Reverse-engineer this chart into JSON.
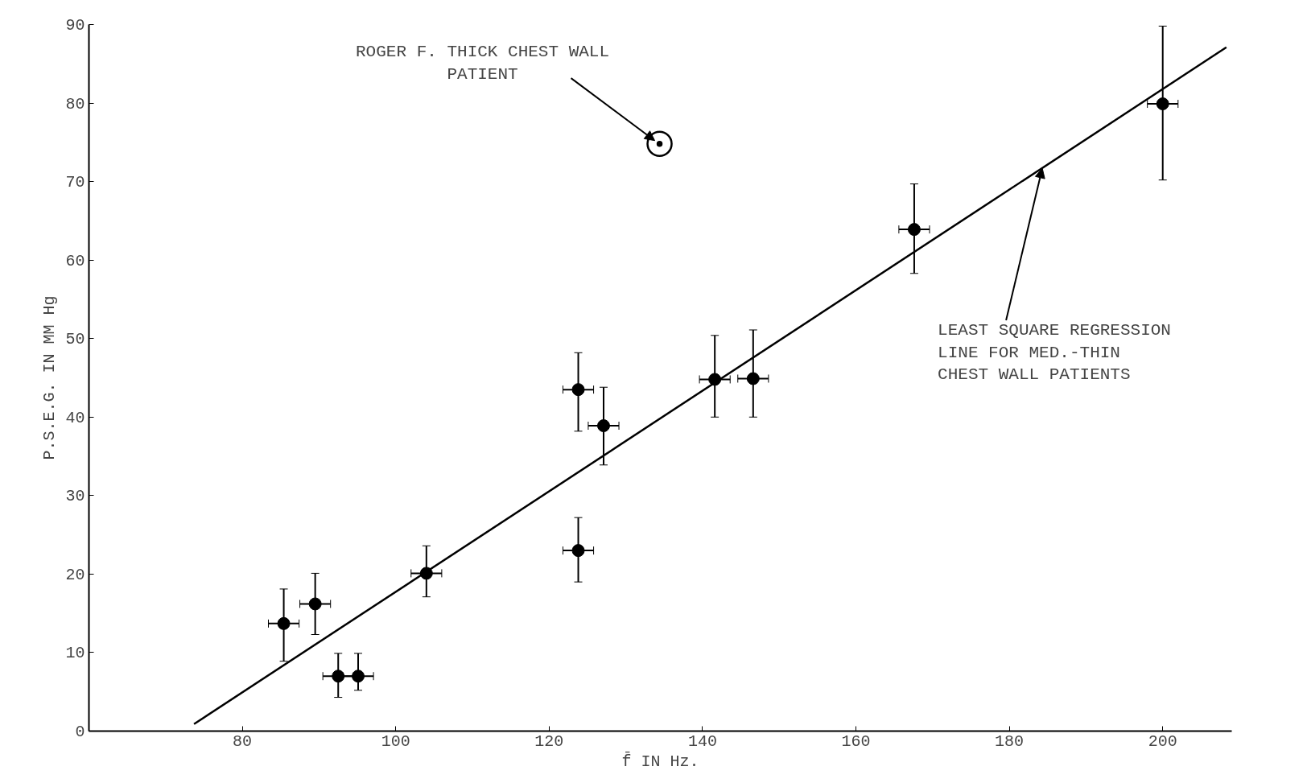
{
  "chart_data": {
    "type": "scatter",
    "xlabel": "f̄ IN Hz.",
    "ylabel": "P.S.E.G. IN MM Hg",
    "xlim": [
      60,
      209
    ],
    "ylim": [
      0,
      90
    ],
    "xticks": [
      80,
      100,
      120,
      140,
      160,
      180,
      200
    ],
    "yticks": [
      0,
      10,
      20,
      30,
      40,
      50,
      60,
      70,
      80,
      90
    ],
    "grid": false,
    "series": [
      {
        "color": "#000000",
        "marker": "circle",
        "x": [
          85.4,
          89.5,
          92.5,
          95.1,
          104.0,
          123.8,
          123.8,
          127.1,
          141.6,
          146.6,
          167.6,
          200.0
        ],
        "values": [
          13.7,
          16.2,
          7.0,
          7.0,
          20.1,
          43.5,
          23.0,
          38.9,
          44.8,
          44.9,
          63.9,
          79.9
        ],
        "errors": [
          [
            8.9,
            18.1
          ],
          [
            12.3,
            20.1
          ],
          [
            4.3,
            9.9
          ],
          [
            5.2,
            9.9
          ],
          [
            17.1,
            23.6
          ],
          [
            38.2,
            48.2
          ],
          [
            19.0,
            27.2
          ],
          [
            33.9,
            43.8
          ],
          [
            40.0,
            50.4
          ],
          [
            40.0,
            51.1
          ],
          [
            58.3,
            69.7
          ],
          [
            70.2,
            89.8
          ]
        ],
        "xerrors": [
          2,
          2,
          2,
          2,
          2,
          2,
          2,
          2,
          2,
          2,
          2,
          2
        ]
      },
      {
        "color": "#000000",
        "marker": "circle_dot",
        "x": [
          134.4
        ],
        "values": [
          74.8
        ]
      },
      {
        "type": "line",
        "color": "#000000",
        "line_style": "solid",
        "x": [
          73.7,
          208.3
        ],
        "values": [
          0.9,
          87.1
        ]
      }
    ],
    "annotations": [
      {
        "text": "ROGER F. THICK CHEST WALL\nPATIENT",
        "x": 134.4,
        "y": 74.8
      },
      {
        "text": "LEAST SQUARE REGRESSION\nLINE FOR MED.-THIN\nCHEST WALL PATIENTS",
        "x": 184.3,
        "y": 71.7
      }
    ]
  }
}
